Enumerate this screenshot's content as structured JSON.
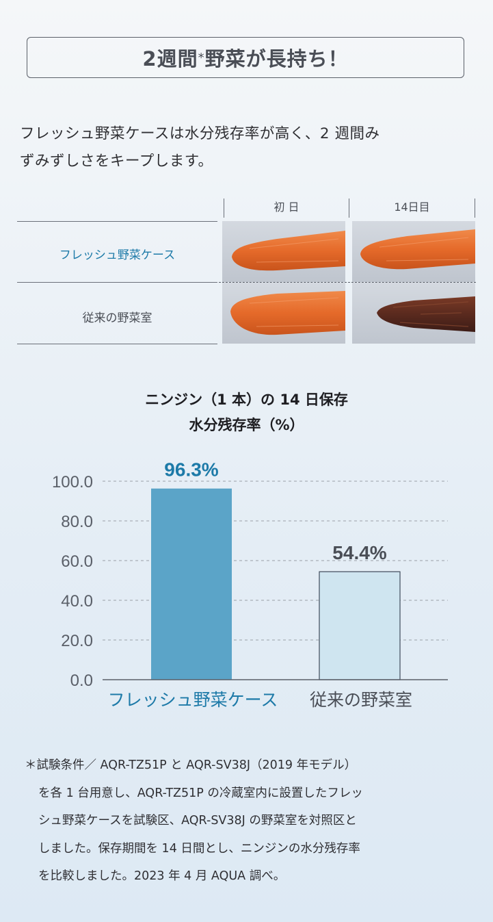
{
  "header": {
    "title_main": "2週間",
    "title_mark": "*",
    "title_rest": "野菜が長持ち！"
  },
  "intro": {
    "line1": "フレッシュ野菜ケースは水分残存率が高く、2 週間み",
    "line2": "ずみずしさをキープします。"
  },
  "comparison": {
    "col_day1": "初 日",
    "col_day14": "14日目",
    "row_fresh": "フレッシュ野菜ケース",
    "row_conventional": "従来の野菜室"
  },
  "chart_title": {
    "line1": "ニンジン（1 本）の 14 日保存",
    "line2": "水分残存率（%）"
  },
  "chart_data": {
    "type": "bar",
    "title": "ニンジン（1 本）の 14 日保存 水分残存率（%）",
    "categories": [
      "フレッシュ野菜ケース",
      "従来の野菜室"
    ],
    "values": [
      96.3,
      54.4
    ],
    "value_labels": [
      "96.3%",
      "54.4%"
    ],
    "ylim": [
      0,
      100
    ],
    "yticks": [
      "0.0",
      "20.0",
      "40.0",
      "60.0",
      "80.0",
      "100.0"
    ],
    "grid": true,
    "colors": {
      "bar_fresh": "#5ba4c8",
      "bar_conventional": "#cfe5f0",
      "label_fresh": "#1d7aa8",
      "label_conventional": "#4a4e56",
      "grid": "#9aa0a8",
      "axis": "#5a5f68"
    }
  },
  "footnote": {
    "line1": "＊試験条件／ AQR-TZ51P と AQR-SV38J（2019 年モデル）",
    "line2": "を各 1 台用意し、AQR-TZ51P の冷蔵室内に設置したフレッ",
    "line3": "シュ野菜ケースを試験区、AQR-SV38J の野菜室を対照区と",
    "line4": "しました。保存期間を 14 日間とし、ニンジンの水分残存率",
    "line5": "を比較しました。2023 年 4 月 AQUA 調べ。"
  }
}
